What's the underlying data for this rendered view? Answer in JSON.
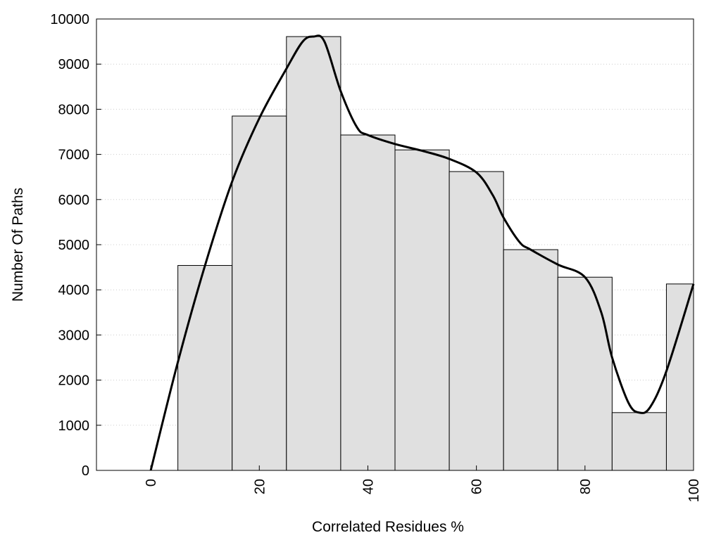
{
  "chart_data": {
    "type": "bar",
    "title": "",
    "xlabel": "Correlated Residues %",
    "ylabel": "Number Of Paths",
    "xlim": [
      -10,
      100
    ],
    "ylim": [
      0,
      10000
    ],
    "x_ticks": [
      0,
      20,
      40,
      60,
      80,
      100
    ],
    "y_ticks": [
      0,
      1000,
      2000,
      3000,
      4000,
      5000,
      6000,
      7000,
      8000,
      9000,
      10000
    ],
    "grid": "horizontal dotted",
    "bar_width": 10,
    "bars": [
      {
        "x": 10,
        "value": 4540
      },
      {
        "x": 20,
        "value": 7850
      },
      {
        "x": 30,
        "value": 9610
      },
      {
        "x": 40,
        "value": 7430
      },
      {
        "x": 50,
        "value": 7100
      },
      {
        "x": 60,
        "value": 6620
      },
      {
        "x": 70,
        "value": 4890
      },
      {
        "x": 80,
        "value": 4280
      },
      {
        "x": 90,
        "value": 1280
      },
      {
        "x": 100,
        "value": 4130
      }
    ],
    "curve": {
      "x": [
        0,
        5,
        10,
        15,
        20,
        25,
        28,
        30,
        32,
        35,
        38,
        40,
        45,
        50,
        55,
        60,
        63,
        65,
        68,
        70,
        75,
        80,
        83,
        85,
        88,
        90,
        92,
        95,
        100
      ],
      "y": [
        0,
        2400,
        4540,
        6400,
        7800,
        8900,
        9500,
        9610,
        9500,
        8400,
        7600,
        7430,
        7230,
        7080,
        6900,
        6600,
        6100,
        5600,
        5050,
        4890,
        4560,
        4280,
        3500,
        2500,
        1500,
        1280,
        1400,
        2200,
        4130
      ]
    },
    "colors": {
      "bar_fill": "#e0e0e0",
      "bar_stroke": "#000000",
      "curve": "#000000",
      "grid": "#cccccc"
    }
  }
}
